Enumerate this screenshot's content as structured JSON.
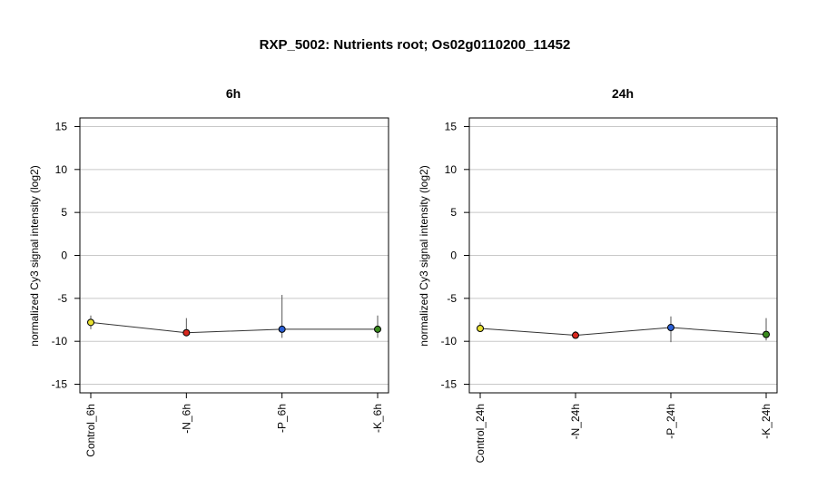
{
  "title": "RXP_5002: Nutrients root; Os02g0110200_11452",
  "chart_data": [
    {
      "type": "line",
      "title": "6h",
      "ylabel": "normalized Cy3 signal intensity (log2)",
      "ylim": [
        -16,
        16
      ],
      "yticks": [
        15,
        10,
        5,
        0,
        -5,
        -10,
        -15
      ],
      "grid": true,
      "categories": [
        "Control_6h",
        "-N_6h",
        "-P_6h",
        "-K_6h"
      ],
      "values": [
        -7.8,
        -9.0,
        -8.6,
        -8.6
      ],
      "error_low": [
        -8.6,
        -9.3,
        -9.6,
        -9.6
      ],
      "error_high": [
        -7.0,
        -7.3,
        -4.6,
        -7.0
      ],
      "colors": [
        "#e8e030",
        "#d8281e",
        "#2a5fd6",
        "#3a8a1e"
      ]
    },
    {
      "type": "line",
      "title": "24h",
      "ylabel": "normalized Cy3 signal intensity (log2)",
      "ylim": [
        -16,
        16
      ],
      "yticks": [
        15,
        10,
        5,
        0,
        -5,
        -10,
        -15
      ],
      "grid": true,
      "categories": [
        "Control_24h",
        "-N_24h",
        "-P_24h",
        "-K_24h"
      ],
      "values": [
        -8.5,
        -9.3,
        -8.4,
        -9.2
      ],
      "error_low": [
        -8.9,
        -9.7,
        -10.1,
        -9.9
      ],
      "error_high": [
        -7.8,
        -8.8,
        -7.1,
        -7.3
      ],
      "colors": [
        "#e8e030",
        "#d8281e",
        "#2a5fd6",
        "#3a8a1e"
      ]
    }
  ]
}
